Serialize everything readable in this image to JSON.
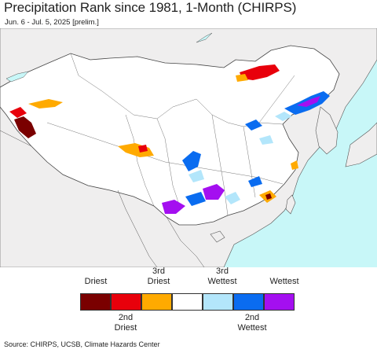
{
  "header": {
    "title": "Precipitation Rank since 1981, 1-Month (CHIRPS)",
    "subtitle": "Jun. 6 - Jul. 5, 2025 [prelim.]"
  },
  "legend": {
    "top_labels": [
      "Driest",
      "3rd\nDriest",
      "3rd\nWettest",
      "Wettest"
    ],
    "bottom_labels": [
      "2nd\nDriest",
      "2nd\nWettest"
    ],
    "colors": [
      "#7a0000",
      "#e8000b",
      "#ffaa00",
      "#ffffff",
      "#b3e6fb",
      "#0a6cf0",
      "#a40ff0"
    ]
  },
  "footer": {
    "source": "Source: CHIRPS, UCSB, Climate Hazards Center"
  },
  "map": {
    "ocean_color": "#c8f7f8",
    "land_color": "#ffffff",
    "outside_color": "#f0f0f0"
  }
}
